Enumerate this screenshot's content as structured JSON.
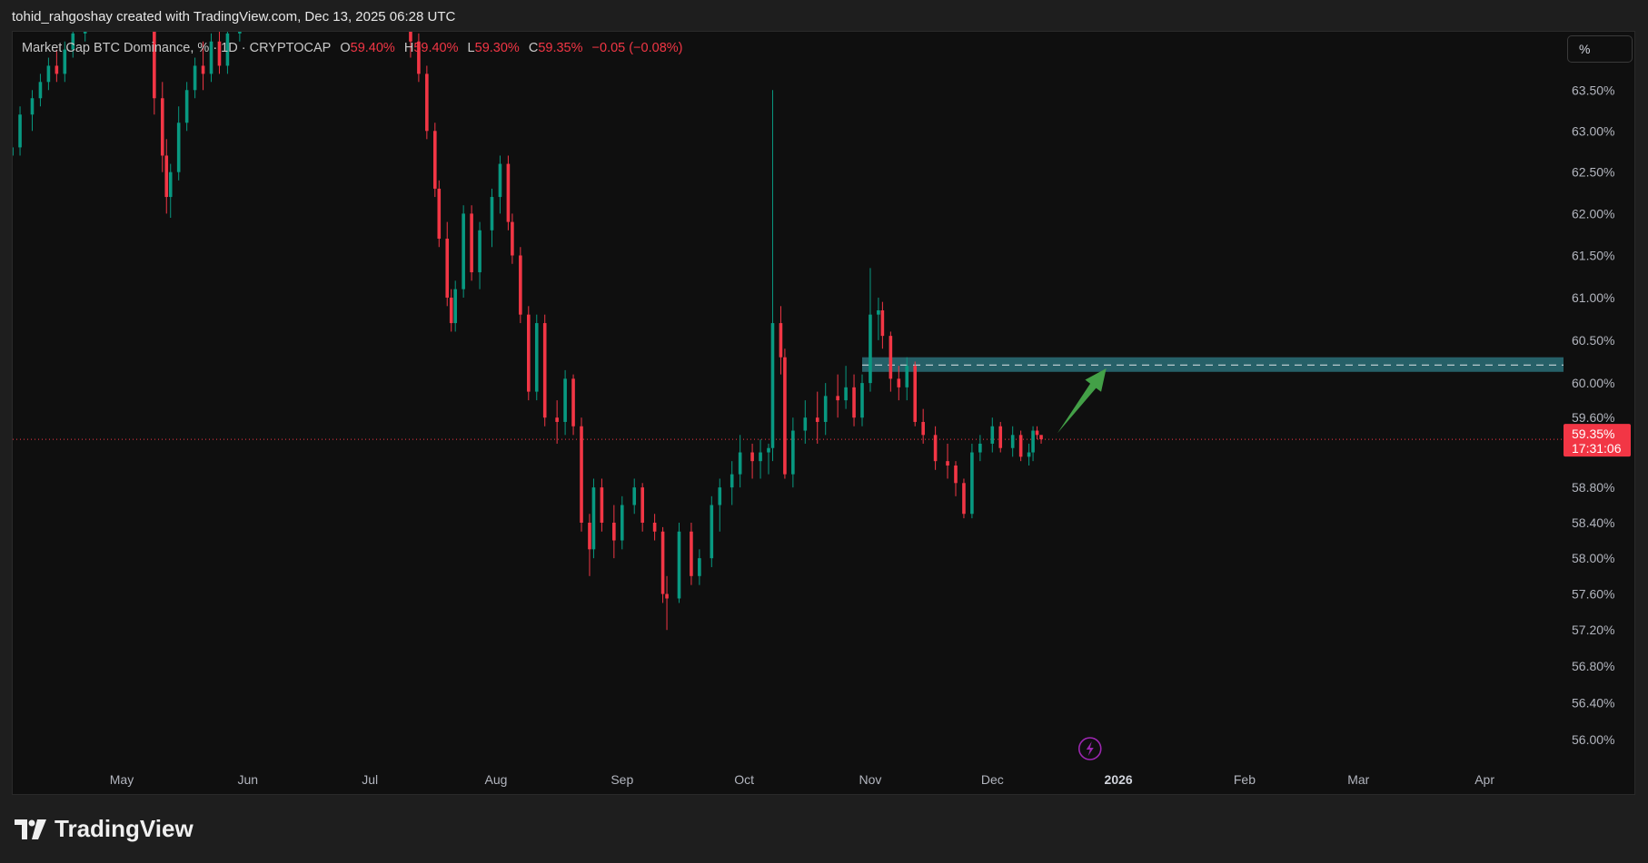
{
  "header": {
    "credit": "tohid_rahgoshay created with TradingView.com, Dec 13, 2025 06:28 UTC"
  },
  "legend": {
    "symbol": "Market Cap BTC Dominance, % · 1D · CRYPTOCAP",
    "o_label": "O",
    "o": "59.40%",
    "h_label": "H",
    "h": "59.40%",
    "l_label": "L",
    "l": "59.30%",
    "c_label": "C",
    "c": "59.35%",
    "change": "−0.05 (−0.08%)"
  },
  "price_axis": {
    "unit_button": "%"
  },
  "footer": {
    "brand": "TradingView"
  },
  "colors": {
    "up": "#089981",
    "down": "#f23645",
    "zone": "#2a6f78",
    "arrow": "#43a047",
    "background": "#0f0f0f",
    "event_icon": "#9c27b0"
  },
  "icons": {
    "event": "lightning-icon",
    "logo": "tradingview-logo"
  },
  "chart_data": {
    "type": "candlestick",
    "scale": "log",
    "interval": "1D",
    "y_ticks": [
      "63.50%",
      "63.00%",
      "62.50%",
      "62.00%",
      "61.50%",
      "61.00%",
      "60.50%",
      "60.00%",
      "59.60%",
      "58.80%",
      "58.40%",
      "58.00%",
      "57.60%",
      "57.20%",
      "56.80%",
      "56.40%",
      "56.00%"
    ],
    "y_tick_values": [
      63.5,
      63.0,
      62.5,
      62.0,
      61.5,
      61.0,
      60.5,
      60.0,
      59.6,
      58.8,
      58.4,
      58.0,
      57.6,
      57.2,
      56.8,
      56.4,
      56.0
    ],
    "x_ticks": [
      {
        "label": "May",
        "date": "2025-05-01"
      },
      {
        "label": "Jun",
        "date": "2025-06-01"
      },
      {
        "label": "Jul",
        "date": "2025-07-01"
      },
      {
        "label": "Aug",
        "date": "2025-08-01"
      },
      {
        "label": "Sep",
        "date": "2025-09-01"
      },
      {
        "label": "Oct",
        "date": "2025-10-01"
      },
      {
        "label": "Nov",
        "date": "2025-11-01"
      },
      {
        "label": "Dec",
        "date": "2025-12-01"
      },
      {
        "label": "2026",
        "date": "2026-01-01"
      },
      {
        "label": "Feb",
        "date": "2026-02-01"
      },
      {
        "label": "Mar",
        "date": "2026-03-01"
      },
      {
        "label": "Apr",
        "date": "2026-04-01"
      }
    ],
    "last_price": {
      "value": 59.35,
      "label": "59.35%",
      "countdown": "17:31:06"
    },
    "zone": {
      "from_date": "2025-10-30",
      "top": 60.3,
      "bottom": 60.13,
      "mid": 60.21
    },
    "arrow": {
      "from": {
        "date": "2025-12-17",
        "value": 59.42
      },
      "to": {
        "date": "2025-12-29",
        "value": 60.17
      }
    },
    "event_marker_date": "2025-12-25",
    "candles_columns": [
      "date",
      "open",
      "high",
      "low",
      "close"
    ],
    "candles": [
      [
        "2025-04-04",
        62.7,
        62.9,
        62.6,
        62.8
      ],
      [
        "2025-04-06",
        62.8,
        63.3,
        62.7,
        63.2
      ],
      [
        "2025-04-09",
        63.2,
        63.5,
        63.0,
        63.4
      ],
      [
        "2025-04-11",
        63.4,
        63.7,
        63.3,
        63.6
      ],
      [
        "2025-04-13",
        63.6,
        63.9,
        63.5,
        63.8
      ],
      [
        "2025-04-15",
        63.8,
        64.0,
        63.6,
        63.7
      ],
      [
        "2025-04-17",
        63.7,
        64.1,
        63.6,
        64.0
      ],
      [
        "2025-04-19",
        64.0,
        64.3,
        63.9,
        64.2
      ],
      [
        "2025-04-22",
        64.2,
        64.6,
        64.1,
        64.5
      ],
      [
        "2025-04-25",
        64.5,
        64.8,
        64.3,
        64.6
      ],
      [
        "2025-04-28",
        64.6,
        64.9,
        64.4,
        64.7
      ],
      [
        "2025-05-01",
        64.7,
        65.0,
        64.5,
        64.8
      ],
      [
        "2025-05-04",
        64.8,
        65.1,
        64.6,
        64.9
      ],
      [
        "2025-05-07",
        64.9,
        65.0,
        64.3,
        64.4
      ],
      [
        "2025-05-09",
        64.4,
        64.5,
        63.2,
        63.4
      ],
      [
        "2025-05-11",
        63.4,
        63.6,
        62.5,
        62.7
      ],
      [
        "2025-05-12",
        62.7,
        62.9,
        62.0,
        62.2
      ],
      [
        "2025-05-13",
        62.2,
        62.6,
        61.95,
        62.5
      ],
      [
        "2025-05-15",
        62.5,
        63.3,
        62.4,
        63.1
      ],
      [
        "2025-05-17",
        63.1,
        63.6,
        63.0,
        63.5
      ],
      [
        "2025-05-19",
        63.5,
        63.9,
        63.4,
        63.8
      ],
      [
        "2025-05-21",
        63.8,
        64.1,
        63.5,
        63.7
      ],
      [
        "2025-05-23",
        63.7,
        64.2,
        63.6,
        64.1
      ],
      [
        "2025-05-25",
        64.1,
        64.3,
        63.7,
        63.8
      ],
      [
        "2025-05-27",
        63.8,
        64.3,
        63.7,
        64.2
      ],
      [
        "2025-05-30",
        64.2,
        64.6,
        64.1,
        64.5
      ],
      [
        "2025-06-03",
        64.5,
        64.9,
        64.4,
        64.8
      ],
      [
        "2025-06-06",
        64.8,
        65.2,
        64.7,
        65.1
      ],
      [
        "2025-06-09",
        65.1,
        65.3,
        64.8,
        64.9
      ],
      [
        "2025-06-12",
        64.9,
        65.4,
        64.8,
        65.3
      ],
      [
        "2025-06-15",
        65.3,
        65.6,
        65.1,
        65.5
      ],
      [
        "2025-06-18",
        65.5,
        65.8,
        65.3,
        65.6
      ],
      [
        "2025-06-21",
        65.6,
        66.0,
        65.5,
        65.9
      ],
      [
        "2025-06-24",
        65.9,
        66.0,
        65.4,
        65.5
      ],
      [
        "2025-06-27",
        65.5,
        65.9,
        65.4,
        65.8
      ],
      [
        "2025-06-30",
        65.8,
        65.9,
        65.3,
        65.4
      ],
      [
        "2025-07-03",
        65.4,
        65.5,
        64.7,
        64.8
      ],
      [
        "2025-07-06",
        64.8,
        65.2,
        64.7,
        65.0
      ],
      [
        "2025-07-09",
        65.0,
        65.1,
        64.3,
        64.4
      ],
      [
        "2025-07-11",
        64.4,
        64.5,
        63.9,
        64.1
      ],
      [
        "2025-07-13",
        64.1,
        64.2,
        63.6,
        63.7
      ],
      [
        "2025-07-15",
        63.7,
        63.8,
        62.9,
        63.0
      ],
      [
        "2025-07-17",
        63.0,
        63.1,
        62.2,
        62.3
      ],
      [
        "2025-07-18",
        62.3,
        62.4,
        61.6,
        61.7
      ],
      [
        "2025-07-20",
        61.7,
        61.9,
        60.9,
        61.0
      ],
      [
        "2025-07-21",
        61.0,
        61.1,
        60.6,
        60.7
      ],
      [
        "2025-07-22",
        60.7,
        61.2,
        60.6,
        61.1
      ],
      [
        "2025-07-24",
        61.1,
        62.1,
        61.0,
        62.0
      ],
      [
        "2025-07-26",
        62.0,
        62.1,
        61.2,
        61.3
      ],
      [
        "2025-07-28",
        61.3,
        61.9,
        61.1,
        61.8
      ],
      [
        "2025-07-31",
        61.8,
        62.3,
        61.6,
        62.2
      ],
      [
        "2025-08-02",
        62.2,
        62.7,
        62.0,
        62.6
      ],
      [
        "2025-08-04",
        62.6,
        62.7,
        61.8,
        61.9
      ],
      [
        "2025-08-05",
        61.9,
        62.0,
        61.4,
        61.5
      ],
      [
        "2025-08-07",
        61.5,
        61.6,
        60.7,
        60.8
      ],
      [
        "2025-08-09",
        60.8,
        60.9,
        59.8,
        59.9
      ],
      [
        "2025-08-11",
        59.9,
        60.8,
        59.8,
        60.7
      ],
      [
        "2025-08-13",
        60.7,
        60.8,
        59.5,
        59.6
      ],
      [
        "2025-08-16",
        59.6,
        59.8,
        59.3,
        59.55
      ],
      [
        "2025-08-18",
        59.55,
        60.15,
        59.4,
        60.05
      ],
      [
        "2025-08-20",
        60.05,
        60.1,
        59.4,
        59.5
      ],
      [
        "2025-08-22",
        59.5,
        59.6,
        58.3,
        58.4
      ],
      [
        "2025-08-24",
        58.4,
        58.5,
        57.8,
        58.1
      ],
      [
        "2025-08-25",
        58.1,
        58.9,
        58.0,
        58.8
      ],
      [
        "2025-08-27",
        58.8,
        58.9,
        58.3,
        58.4
      ],
      [
        "2025-08-30",
        58.4,
        58.6,
        58.0,
        58.2
      ],
      [
        "2025-09-01",
        58.2,
        58.7,
        58.1,
        58.6
      ],
      [
        "2025-09-04",
        58.6,
        58.9,
        58.5,
        58.8
      ],
      [
        "2025-09-06",
        58.8,
        58.85,
        58.3,
        58.4
      ],
      [
        "2025-09-09",
        58.4,
        58.5,
        58.2,
        58.3
      ],
      [
        "2025-09-11",
        58.3,
        58.35,
        57.5,
        57.6
      ],
      [
        "2025-09-12",
        57.6,
        57.8,
        57.2,
        57.55
      ],
      [
        "2025-09-15",
        57.55,
        58.4,
        57.5,
        58.3
      ],
      [
        "2025-09-18",
        58.3,
        58.4,
        57.7,
        57.8
      ],
      [
        "2025-09-20",
        57.8,
        58.1,
        57.7,
        58.0
      ],
      [
        "2025-09-23",
        58.0,
        58.7,
        57.9,
        58.6
      ],
      [
        "2025-09-25",
        58.6,
        58.9,
        58.3,
        58.8
      ],
      [
        "2025-09-28",
        58.8,
        59.1,
        58.6,
        58.95
      ],
      [
        "2025-09-30",
        58.95,
        59.4,
        58.8,
        59.2
      ],
      [
        "2025-10-03",
        59.2,
        59.3,
        58.9,
        59.1
      ],
      [
        "2025-10-05",
        59.1,
        59.35,
        58.9,
        59.2
      ],
      [
        "2025-10-07",
        59.2,
        59.3,
        58.95,
        59.25
      ],
      [
        "2025-10-08",
        59.25,
        63.5,
        59.1,
        60.7
      ],
      [
        "2025-10-10",
        60.7,
        60.9,
        60.1,
        60.3
      ],
      [
        "2025-10-11",
        60.3,
        60.4,
        58.9,
        58.95
      ],
      [
        "2025-10-13",
        58.95,
        59.6,
        58.8,
        59.45
      ],
      [
        "2025-10-16",
        59.45,
        59.8,
        59.3,
        59.6
      ],
      [
        "2025-10-19",
        59.6,
        59.9,
        59.3,
        59.55
      ],
      [
        "2025-10-21",
        59.55,
        60.0,
        59.4,
        59.85
      ],
      [
        "2025-10-24",
        59.85,
        60.1,
        59.6,
        59.8
      ],
      [
        "2025-10-26",
        59.8,
        60.2,
        59.7,
        59.95
      ],
      [
        "2025-10-28",
        59.95,
        60.1,
        59.5,
        59.6
      ],
      [
        "2025-10-30",
        59.6,
        60.1,
        59.5,
        60.0
      ],
      [
        "2025-11-01",
        60.0,
        61.35,
        59.9,
        60.8
      ],
      [
        "2025-11-03",
        60.8,
        61.0,
        60.5,
        60.85
      ],
      [
        "2025-11-04",
        60.85,
        60.95,
        60.4,
        60.55
      ],
      [
        "2025-11-06",
        60.55,
        60.6,
        59.9,
        60.05
      ],
      [
        "2025-11-08",
        60.05,
        60.2,
        59.8,
        59.95
      ],
      [
        "2025-11-10",
        59.95,
        60.3,
        59.8,
        60.2
      ],
      [
        "2025-11-12",
        60.2,
        60.25,
        59.5,
        59.55
      ],
      [
        "2025-11-14",
        59.55,
        59.7,
        59.3,
        59.4
      ],
      [
        "2025-11-17",
        59.4,
        59.5,
        59.0,
        59.1
      ],
      [
        "2025-11-20",
        59.1,
        59.3,
        58.9,
        59.05
      ],
      [
        "2025-11-22",
        59.05,
        59.1,
        58.7,
        58.85
      ],
      [
        "2025-11-24",
        58.85,
        58.9,
        58.45,
        58.5
      ],
      [
        "2025-11-26",
        58.5,
        59.3,
        58.45,
        59.2
      ],
      [
        "2025-11-28",
        59.2,
        59.4,
        59.1,
        59.3
      ],
      [
        "2025-12-01",
        59.3,
        59.6,
        59.2,
        59.5
      ],
      [
        "2025-12-03",
        59.5,
        59.55,
        59.2,
        59.25
      ],
      [
        "2025-12-06",
        59.25,
        59.5,
        59.15,
        59.4
      ],
      [
        "2025-12-08",
        59.4,
        59.45,
        59.1,
        59.15
      ],
      [
        "2025-12-10",
        59.15,
        59.3,
        59.05,
        59.2
      ],
      [
        "2025-12-11",
        59.2,
        59.5,
        59.1,
        59.45
      ],
      [
        "2025-12-12",
        59.45,
        59.5,
        59.35,
        59.4
      ],
      [
        "2025-12-13",
        59.4,
        59.4,
        59.3,
        59.35
      ]
    ]
  }
}
